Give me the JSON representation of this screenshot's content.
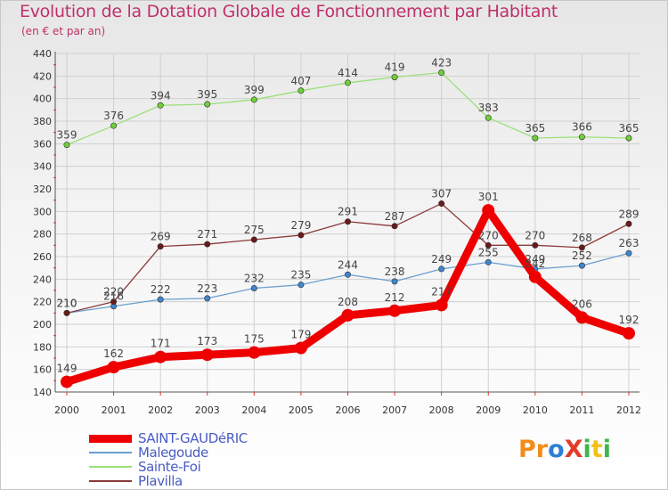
{
  "title": "Evolution de la Dotation Globale de Fonctionnement par Habitant",
  "subtitle": "(en € et par an)",
  "logo": {
    "text": "ProXiti",
    "letters": [
      {
        "ch": "P",
        "color": "#f28c1a"
      },
      {
        "ch": "r",
        "color": "#f28c1a"
      },
      {
        "ch": "o",
        "color": "#2d7fd3"
      },
      {
        "ch": "X",
        "color": "#e33b2a"
      },
      {
        "ch": "i",
        "color": "#3fb64a"
      },
      {
        "ch": "t",
        "color": "#f2c21a"
      },
      {
        "ch": "i",
        "color": "#3fb64a"
      }
    ]
  },
  "chart_data": {
    "type": "line",
    "title": "Evolution de la Dotation Globale de Fonctionnement par Habitant",
    "subtitle": "(en € et par an)",
    "xlabel": "",
    "ylabel": "",
    "x": [
      "2000",
      "2001",
      "2002",
      "2003",
      "2004",
      "2005",
      "2006",
      "2007",
      "2008",
      "2009",
      "2010",
      "2011",
      "2012"
    ],
    "ylim": [
      140,
      440
    ],
    "yticks": [
      140,
      160,
      180,
      200,
      220,
      240,
      260,
      280,
      300,
      320,
      340,
      360,
      380,
      400,
      420,
      440
    ],
    "grid": true,
    "legend_position": "bottom-left",
    "series": [
      {
        "name": "SAINT-GAUDéRIC",
        "color": "#ee0000",
        "marker_fill": "#ee0000",
        "emphasis": true,
        "values": [
          149,
          162,
          171,
          173,
          175,
          179,
          208,
          212,
          217,
          301,
          242,
          206,
          192
        ]
      },
      {
        "name": "Malegoude",
        "color": "#6a9fd0",
        "marker_fill": "#3f86cc",
        "emphasis": false,
        "values": [
          210,
          216,
          222,
          223,
          232,
          235,
          244,
          238,
          249,
          255,
          249,
          252,
          263
        ]
      },
      {
        "name": "Sainte-Foi",
        "color": "#9be07a",
        "marker_fill": "#6fcf3a",
        "emphasis": false,
        "values": [
          359,
          376,
          394,
          395,
          399,
          407,
          414,
          419,
          423,
          383,
          365,
          366,
          365
        ]
      },
      {
        "name": "Plavilla",
        "color": "#8a3a3a",
        "marker_fill": "#6a1a1a",
        "emphasis": false,
        "values": [
          210,
          220,
          269,
          271,
          275,
          279,
          291,
          287,
          307,
          270,
          270,
          268,
          289
        ]
      }
    ]
  }
}
